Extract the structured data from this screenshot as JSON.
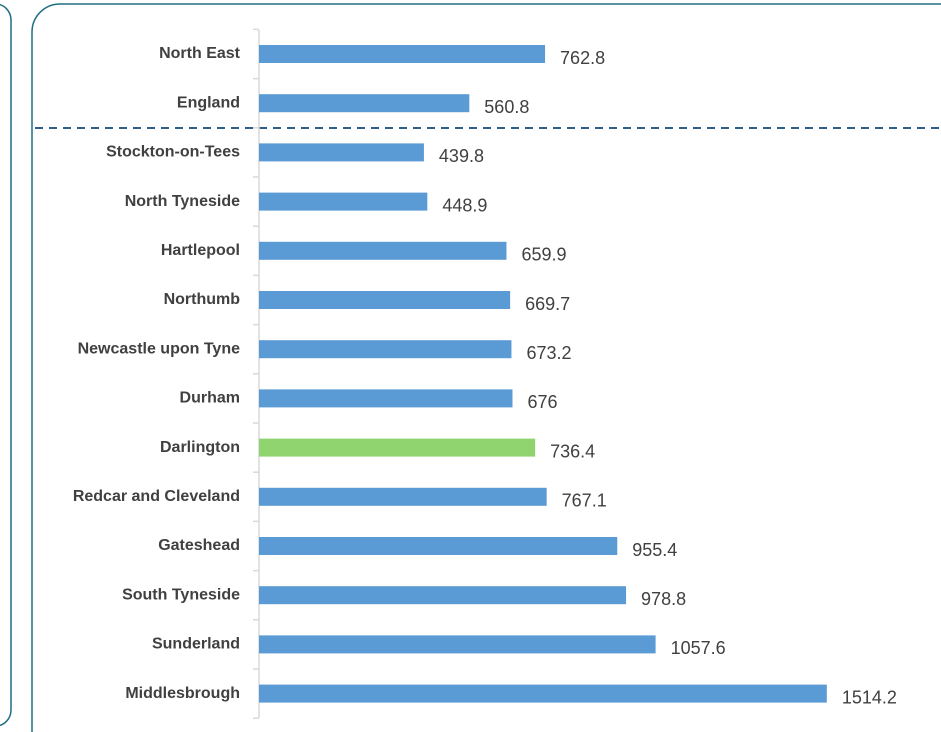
{
  "chart_data": {
    "type": "bar",
    "orientation": "horizontal",
    "categories": [
      "North East",
      "England",
      "Stockton-on-Tees",
      "North Tyneside",
      "Hartlepool",
      "Northumb",
      "Newcastle upon Tyne",
      "Durham",
      "Darlington",
      "Redcar and Cleveland",
      "Gateshead",
      "South Tyneside",
      "Sunderland",
      "Middlesbrough"
    ],
    "values": [
      762.8,
      560.8,
      439.8,
      448.9,
      659.9,
      669.7,
      673.2,
      676,
      736.4,
      767.1,
      955.4,
      978.8,
      1057.6,
      1514.2
    ],
    "colors": [
      "#5b9bd5",
      "#5b9bd5",
      "#5b9bd5",
      "#5b9bd5",
      "#5b9bd5",
      "#5b9bd5",
      "#5b9bd5",
      "#5b9bd5",
      "#8fd46e",
      "#5b9bd5",
      "#5b9bd5",
      "#5b9bd5",
      "#5b9bd5",
      "#5b9bd5"
    ],
    "xlim": [
      0,
      1800
    ]
  }
}
